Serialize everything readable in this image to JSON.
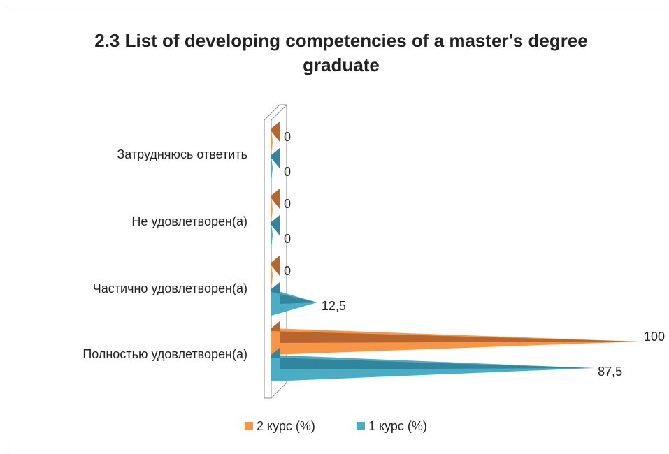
{
  "chart_data": {
    "type": "bar3d-horizontal",
    "title": "2.3 List of developing competencies of a master's degree graduate",
    "categories": [
      "Затрудняюсь ответить",
      "Не удовлетворен(а)",
      "Частично удовлетворен(а)",
      "Полностью удовлетворен(а)"
    ],
    "series": [
      {
        "name": "2 курс (%)",
        "color": "#f79646",
        "values": [
          0,
          0,
          0,
          100
        ],
        "value_labels": [
          "0",
          "0",
          "0",
          "100"
        ]
      },
      {
        "name": "1 курс (%)",
        "color": "#4bacc6",
        "values": [
          0,
          0,
          12.5,
          87.5
        ],
        "value_labels": [
          "0",
          "0",
          "12,5",
          "87,5"
        ]
      }
    ],
    "legend": "bottom"
  }
}
